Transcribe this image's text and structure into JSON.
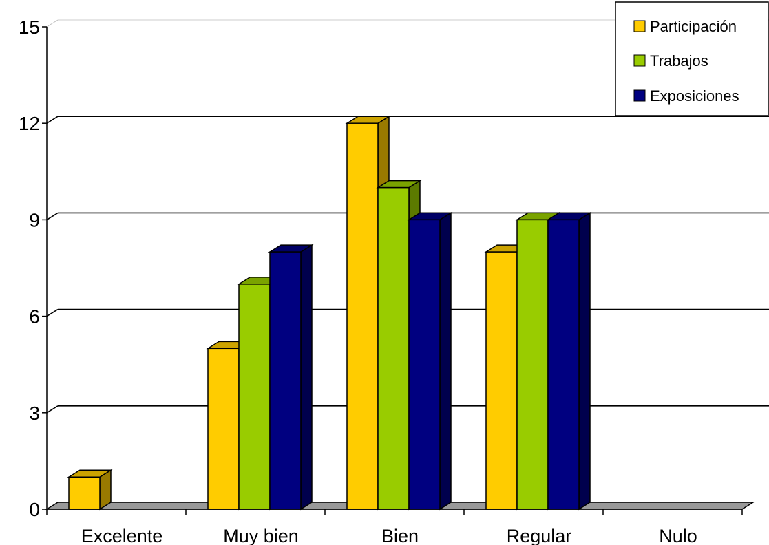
{
  "chart_data": {
    "type": "bar",
    "categories": [
      "Excelente",
      "Muy bien",
      "Bien",
      "Regular",
      "Nulo"
    ],
    "series": [
      {
        "name": "Participación",
        "values": [
          1,
          5,
          12,
          8,
          0
        ],
        "color": "#FFCC00",
        "side_color": "#997A00",
        "top_color": "#CCA300"
      },
      {
        "name": "Trabajos",
        "values": [
          0,
          7,
          10,
          9,
          0
        ],
        "color": "#99CC00",
        "side_color": "#5C7A00",
        "top_color": "#7AA300"
      },
      {
        "name": "Exposiciones",
        "values": [
          0,
          8,
          9,
          9,
          0
        ],
        "color": "#000080",
        "side_color": "#00004D",
        "top_color": "#000066"
      }
    ],
    "y_ticks": [
      "0",
      "3",
      "6",
      "9",
      "12",
      "15"
    ],
    "ylim": [
      0,
      15
    ],
    "grid": true,
    "legend_position": "top-right",
    "floor_color": "#999999"
  }
}
